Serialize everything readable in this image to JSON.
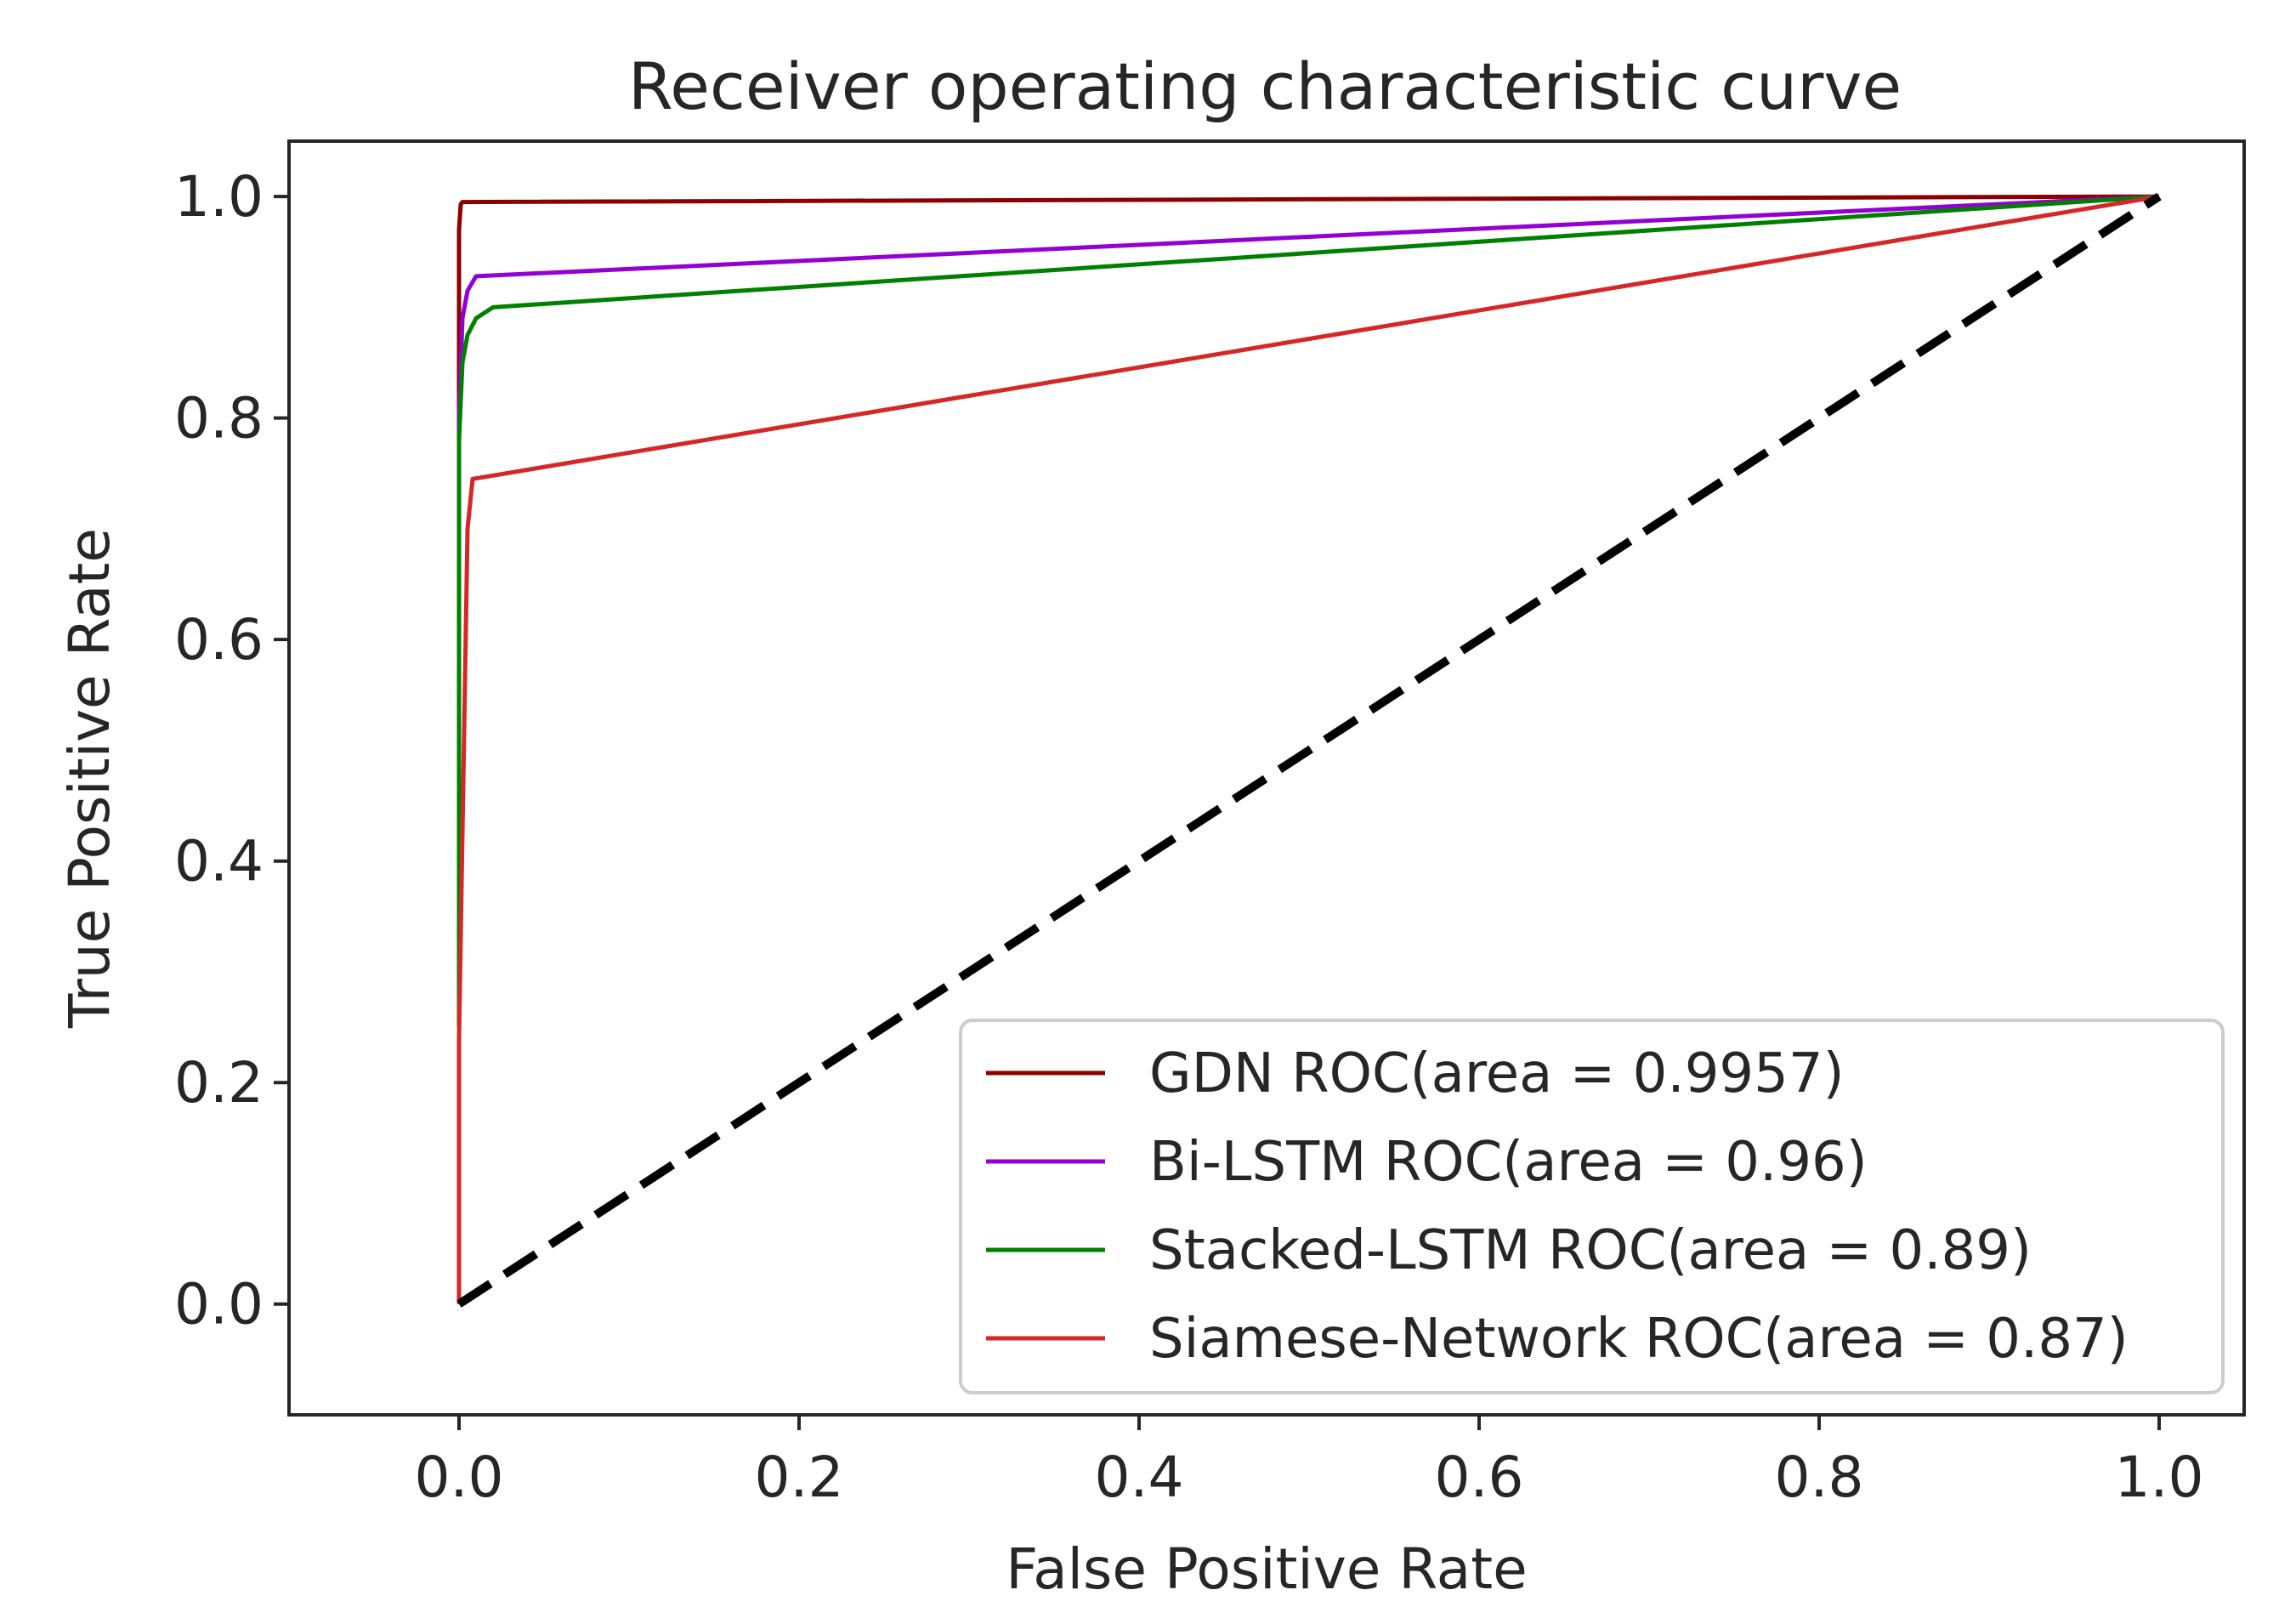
{
  "chart_data": {
    "type": "line",
    "title": "Receiver operating characteristic curve",
    "xlabel": "False Positive Rate",
    "ylabel": "True Positive Rate",
    "xlim": [
      -0.1,
      1.05
    ],
    "ylim": [
      -0.1,
      1.05
    ],
    "xticks": [
      0.0,
      0.2,
      0.4,
      0.6,
      0.8,
      1.0
    ],
    "xtick_labels": [
      "0.0",
      "0.2",
      "0.4",
      "0.6",
      "0.8",
      "1.0"
    ],
    "yticks": [
      0.0,
      0.2,
      0.4,
      0.6,
      0.8,
      1.0
    ],
    "ytick_labels": [
      "0.0",
      "0.2",
      "0.4",
      "0.6",
      "0.8",
      "1.0"
    ],
    "grid": false,
    "legend_position": "lower-right",
    "series": [
      {
        "name": "GDN ROC(area = 0.9957)",
        "color": "#8b0000",
        "line_style": "solid",
        "x": [
          0.0,
          0.0,
          0.001,
          0.002,
          1.0
        ],
        "y": [
          0.8,
          0.97,
          0.993,
          0.995,
          1.0
        ]
      },
      {
        "name": "Bi-LSTM ROC(area = 0.96)",
        "color": "#9400d3",
        "line_style": "solid",
        "x": [
          0.0,
          0.0,
          0.002,
          0.005,
          0.01,
          1.0
        ],
        "y": [
          0.25,
          0.8,
          0.89,
          0.915,
          0.928,
          1.0
        ]
      },
      {
        "name": "Stacked-LSTM ROC(area = 0.89)",
        "color": "#008000",
        "line_style": "solid",
        "x": [
          0.0,
          0.0,
          0.002,
          0.005,
          0.01,
          0.02,
          1.0
        ],
        "y": [
          0.25,
          0.78,
          0.85,
          0.875,
          0.89,
          0.9,
          1.0
        ]
      },
      {
        "name": "Siamese-Network ROC(area = 0.87)",
        "color": "#d62728",
        "line_style": "solid",
        "x": [
          0.0,
          0.0,
          0.005,
          0.008,
          1.0
        ],
        "y": [
          0.0,
          0.24,
          0.7,
          0.745,
          1.0
        ]
      },
      {
        "name": "",
        "color": "#000000",
        "line_style": "dashed",
        "x": [
          0.0,
          1.0
        ],
        "y": [
          0.0,
          1.0
        ]
      }
    ]
  }
}
